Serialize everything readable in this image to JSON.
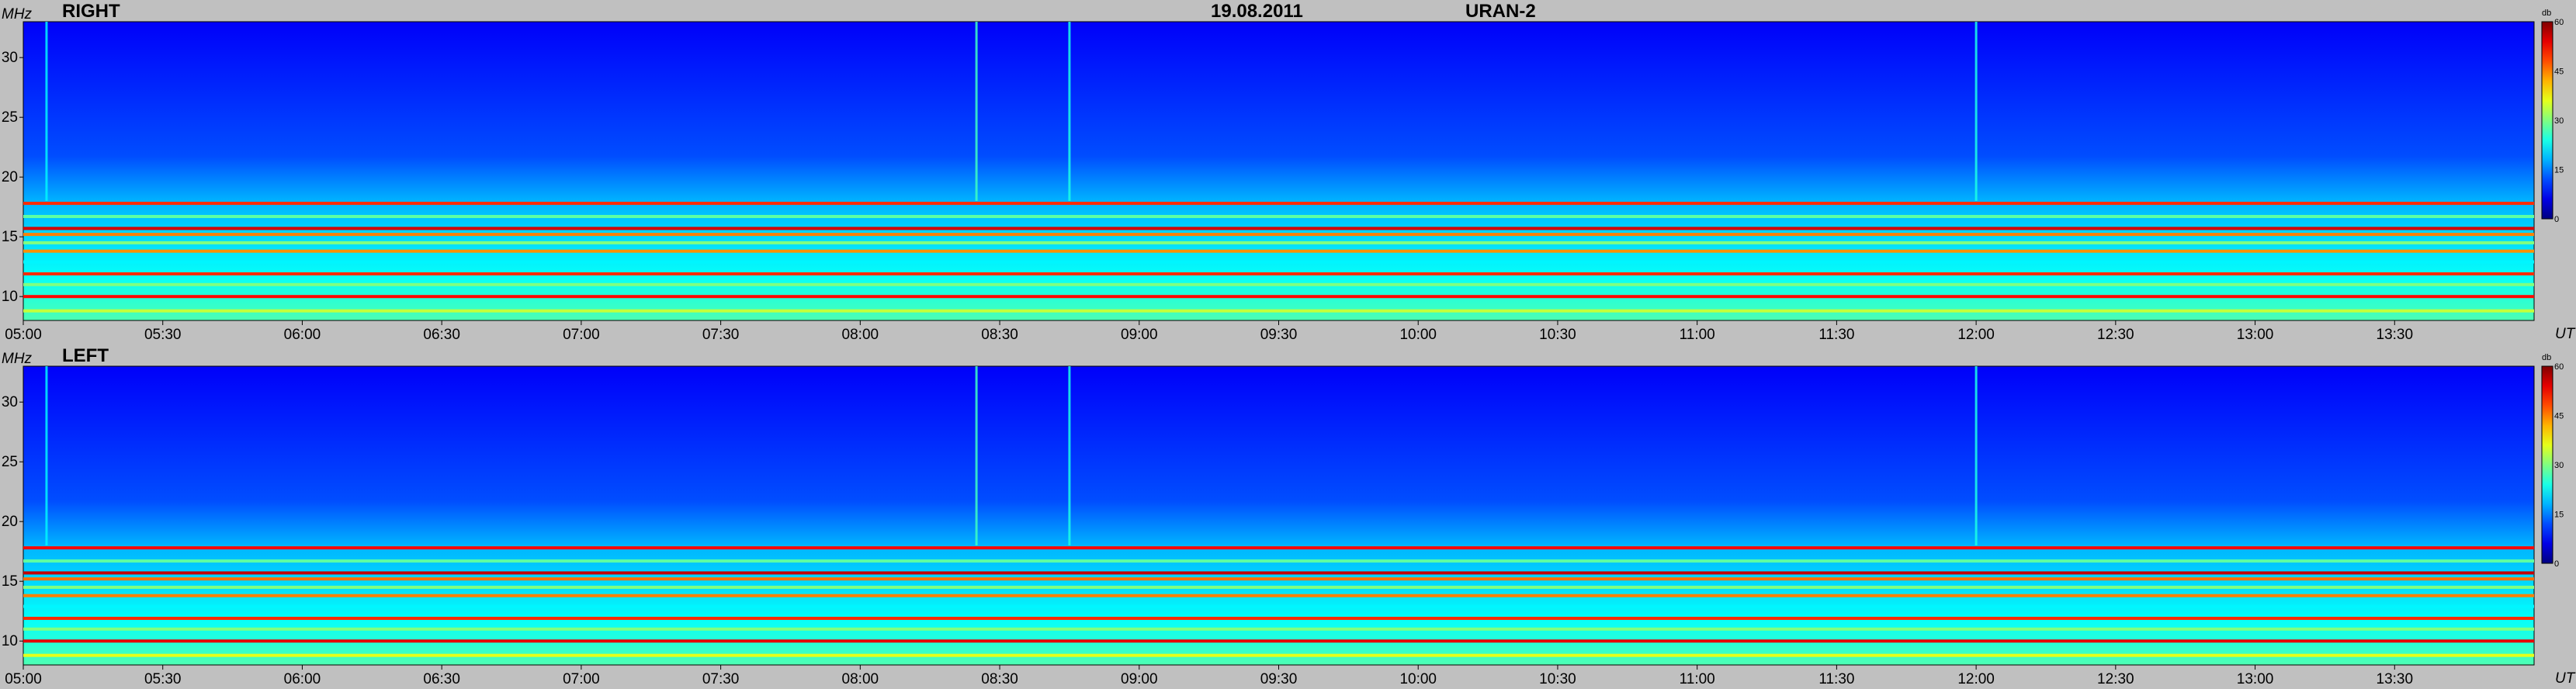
{
  "header": {
    "date": "19.08.2011",
    "instrument": "URAN-2"
  },
  "panels": [
    {
      "polarization": "RIGHT"
    },
    {
      "polarization": "LEFT"
    }
  ],
  "axes": {
    "y_unit": "MHz",
    "x_unit": "UT",
    "colorbar_unit": "db"
  },
  "chart_data": [
    {
      "type": "heatmap",
      "panel": "RIGHT",
      "title": "RIGHT",
      "xlabel": "UT",
      "ylabel": "MHz",
      "x_ticks": [
        "05:00",
        "05:30",
        "06:00",
        "06:30",
        "07:00",
        "07:30",
        "08:00",
        "08:30",
        "09:00",
        "09:30",
        "10:00",
        "10:30",
        "11:00",
        "11:30",
        "12:00",
        "12:30",
        "13:00",
        "13:30"
      ],
      "y_ticks": [
        10,
        15,
        20,
        25,
        30
      ],
      "ylim": [
        8.0,
        33.0
      ],
      "colorbar": {
        "label": "db",
        "ticks": [
          0,
          15,
          30,
          45,
          60
        ],
        "range": [
          0,
          60
        ]
      },
      "bands_mhz": [
        {
          "freq": 17.8,
          "level": 50
        },
        {
          "freq": 16.7,
          "level": 28
        },
        {
          "freq": 15.7,
          "level": 55
        },
        {
          "freq": 15.2,
          "level": 45
        },
        {
          "freq": 14.5,
          "level": 30
        },
        {
          "freq": 13.8,
          "level": 44
        },
        {
          "freq": 12.9,
          "level": 22
        },
        {
          "freq": 11.9,
          "level": 50
        },
        {
          "freq": 11.0,
          "level": 30
        },
        {
          "freq": 10.0,
          "level": 52
        },
        {
          "freq": 8.8,
          "level": 34
        }
      ],
      "bursts": [
        {
          "time": "05:05",
          "level": 22
        },
        {
          "time": "08:25",
          "level": 26
        },
        {
          "time": "08:45",
          "level": 24
        },
        {
          "time": "12:00",
          "level": 24
        }
      ]
    },
    {
      "type": "heatmap",
      "panel": "LEFT",
      "title": "LEFT",
      "xlabel": "UT",
      "ylabel": "MHz",
      "x_ticks": [
        "05:00",
        "05:30",
        "06:00",
        "06:30",
        "07:00",
        "07:30",
        "08:00",
        "08:30",
        "09:00",
        "09:30",
        "10:00",
        "10:30",
        "11:00",
        "11:30",
        "12:00",
        "12:30",
        "13:00",
        "13:30"
      ],
      "y_ticks": [
        10,
        15,
        20,
        25,
        30
      ],
      "ylim": [
        8.0,
        33.0
      ],
      "colorbar": {
        "label": "db",
        "ticks": [
          0,
          15,
          30,
          45,
          60
        ],
        "range": [
          0,
          60
        ]
      },
      "bands_mhz": [
        {
          "freq": 17.8,
          "level": 52
        },
        {
          "freq": 16.7,
          "level": 28
        },
        {
          "freq": 15.7,
          "level": 56
        },
        {
          "freq": 15.2,
          "level": 46
        },
        {
          "freq": 14.5,
          "level": 30
        },
        {
          "freq": 13.8,
          "level": 45
        },
        {
          "freq": 12.9,
          "level": 22
        },
        {
          "freq": 11.9,
          "level": 50
        },
        {
          "freq": 11.0,
          "level": 30
        },
        {
          "freq": 10.0,
          "level": 54
        },
        {
          "freq": 8.8,
          "level": 36
        }
      ],
      "bursts": [
        {
          "time": "05:05",
          "level": 22
        },
        {
          "time": "08:25",
          "level": 26
        },
        {
          "time": "08:45",
          "level": 24
        },
        {
          "time": "12:00",
          "level": 24
        }
      ]
    }
  ]
}
